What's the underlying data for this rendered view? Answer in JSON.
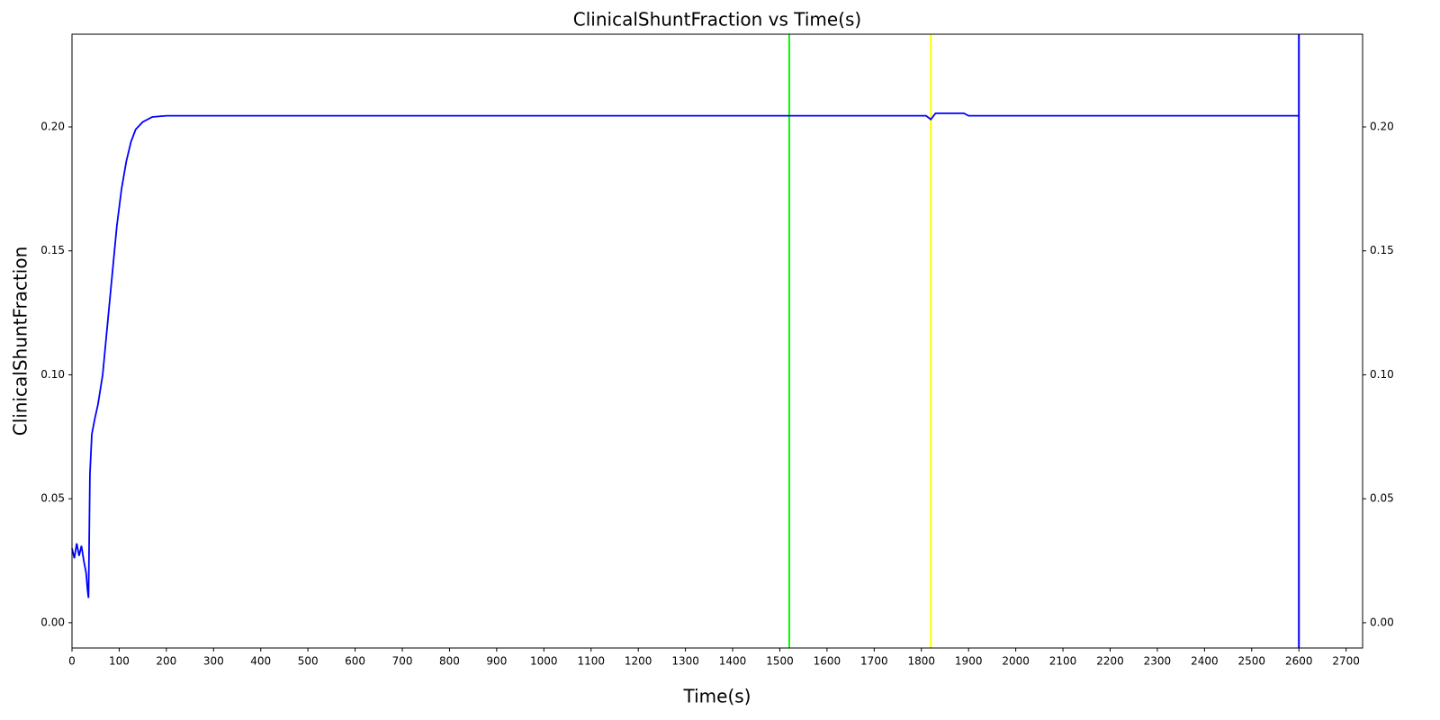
{
  "chart_data": {
    "type": "line",
    "title": "ClinicalShuntFraction vs Time(s)",
    "x_label": "Time(s)",
    "y_label": "ClinicalShuntFraction",
    "color": "#0000ff",
    "x": [
      0,
      5,
      10,
      15,
      20,
      25,
      30,
      33,
      35,
      38,
      42,
      48,
      55,
      65,
      75,
      85,
      95,
      105,
      115,
      125,
      135,
      150,
      170,
      200,
      400,
      800,
      1200,
      1600,
      1810,
      1820,
      1830,
      1890,
      1900,
      2200,
      2600
    ],
    "values": [
      0.03,
      0.026,
      0.032,
      0.027,
      0.031,
      0.025,
      0.02,
      0.013,
      0.01,
      0.06,
      0.076,
      0.082,
      0.088,
      0.1,
      0.12,
      0.14,
      0.16,
      0.175,
      0.186,
      0.194,
      0.199,
      0.202,
      0.204,
      0.2045,
      0.2045,
      0.2045,
      0.2045,
      0.2045,
      0.2045,
      0.203,
      0.2055,
      0.2055,
      0.2045,
      0.2045,
      0.2045
    ],
    "vlines": [
      {
        "x": 1520,
        "color": "#00ff00"
      },
      {
        "x": 1820,
        "color": "#ffff00"
      },
      {
        "x": 2600,
        "color": "#0000ff"
      }
    ],
    "xlim": [
      0,
      2735
    ],
    "ylim": [
      -0.0102,
      0.2374
    ],
    "xticks": [
      0,
      100,
      200,
      300,
      400,
      500,
      600,
      700,
      800,
      900,
      1000,
      1100,
      1200,
      1300,
      1400,
      1500,
      1600,
      1700,
      1800,
      1900,
      2000,
      2100,
      2200,
      2300,
      2400,
      2500,
      2600,
      2700
    ],
    "yticks": [
      {
        "value": 0,
        "label": "0.00"
      },
      {
        "value": 0.05,
        "label": "0.05"
      },
      {
        "value": 0.1,
        "label": "0.10"
      },
      {
        "value": 0.15,
        "label": "0.15"
      },
      {
        "value": 0.2,
        "label": "0.20"
      }
    ],
    "right_ticks": true,
    "grid": false
  }
}
